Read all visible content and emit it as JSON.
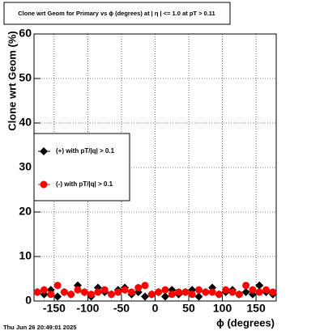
{
  "chart_data": {
    "type": "scatter",
    "title": "Clone wrt Geom for Primary vs ϕ (degrees) at |  η  | <= 1.0 at pT > 0.11",
    "x_label": "ϕ (degrees)",
    "y_label": "Clone wrt Geom (%)",
    "timestamp": "Thu Jun 26 20:49:01 2025",
    "x": [
      -175,
      -165,
      -155,
      -145,
      -135,
      -125,
      -115,
      -105,
      -95,
      -85,
      -75,
      -65,
      -55,
      -45,
      -35,
      -25,
      -15,
      -5,
      5,
      15,
      25,
      35,
      45,
      55,
      65,
      75,
      85,
      95,
      105,
      115,
      125,
      135,
      145,
      155,
      165,
      175
    ],
    "series": [
      {
        "name": "(+) with pT/|q| > 0.1",
        "color": "#000000",
        "marker": "diamond",
        "values": [
          2,
          1.5,
          2.5,
          1,
          2,
          1.5,
          3.5,
          2,
          1,
          3,
          2,
          1.5,
          2.5,
          3,
          1.5,
          2,
          1,
          1.5,
          2,
          1,
          2.5,
          1.5,
          2,
          2.5,
          1,
          2,
          3,
          1.5,
          2,
          2.5,
          1.5,
          2,
          1.5,
          3.5,
          2,
          1.5
        ]
      },
      {
        "name": "(-) with pT/|q| > 0.1",
        "color": "#ff0000",
        "marker": "circle",
        "values": [
          2,
          2.5,
          1.5,
          3.5,
          2,
          1.5,
          2.5,
          2,
          1.5,
          2,
          2.5,
          1.5,
          2,
          2.5,
          2,
          3,
          3.5,
          1.5,
          2,
          2.5,
          1.5,
          2,
          2,
          1.5,
          2.5,
          2,
          2,
          1.5,
          2.5,
          2,
          1.5,
          3.5,
          2.5,
          2,
          2.5,
          2
        ]
      }
    ],
    "xlim": [
      -180,
      180
    ],
    "ylim": [
      0,
      60
    ],
    "xticks": [
      -150,
      -100,
      -50,
      0,
      50,
      100,
      150
    ],
    "yticks": [
      0,
      10,
      20,
      30,
      40,
      50,
      60
    ],
    "grid": true,
    "legend": "left"
  }
}
